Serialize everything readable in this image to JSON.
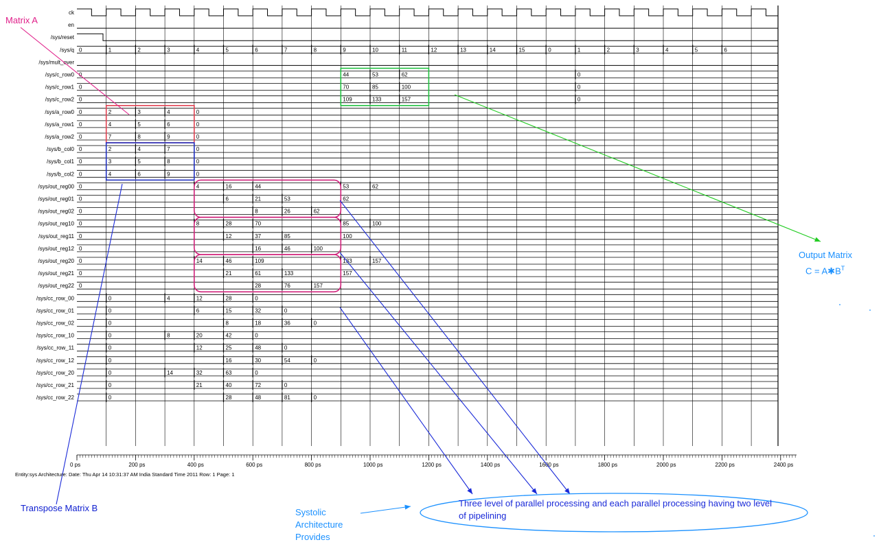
{
  "signals": [
    {
      "name": "ck",
      "kind": "clock"
    },
    {
      "name": "en",
      "kind": "bit",
      "changes": []
    },
    {
      "name": "/sys/reset",
      "kind": "reset"
    },
    {
      "name": "/sys/q",
      "kind": "bus",
      "init": "0",
      "values": [
        [
          "1",
          1
        ],
        [
          "2",
          2
        ],
        [
          "3",
          3
        ],
        [
          "4",
          4
        ],
        [
          "5",
          5
        ],
        [
          "6",
          6
        ],
        [
          "7",
          7
        ],
        [
          "8",
          8
        ],
        [
          "9",
          9
        ],
        [
          "10",
          10
        ],
        [
          "11",
          11
        ],
        [
          "12",
          12
        ],
        [
          "13",
          13
        ],
        [
          "14",
          14
        ],
        [
          "15",
          15
        ],
        [
          "0",
          16
        ],
        [
          "1",
          17
        ],
        [
          "2",
          18
        ],
        [
          "3",
          19
        ],
        [
          "4",
          20
        ],
        [
          "5",
          21
        ],
        [
          "6",
          22
        ]
      ]
    },
    {
      "name": "/sys/mult_over",
      "kind": "bit",
      "changes": []
    },
    {
      "name": "/sys/c_row0",
      "kind": "bus",
      "init": "0",
      "values": [
        [
          "44",
          9
        ],
        [
          "53",
          10
        ],
        [
          "62",
          11
        ],
        [
          "0",
          17
        ]
      ]
    },
    {
      "name": "/sys/c_row1",
      "kind": "bus",
      "init": "0",
      "values": [
        [
          "70",
          9
        ],
        [
          "85",
          10
        ],
        [
          "100",
          11
        ],
        [
          "0",
          17
        ]
      ]
    },
    {
      "name": "/sys/c_row2",
      "kind": "bus",
      "init": "0",
      "values": [
        [
          "109",
          9
        ],
        [
          "133",
          10
        ],
        [
          "157",
          11
        ],
        [
          "0",
          17
        ]
      ]
    },
    {
      "name": "/sys/a_row0",
      "kind": "bus",
      "init": "0",
      "values": [
        [
          "2",
          1
        ],
        [
          "3",
          2
        ],
        [
          "4",
          3
        ],
        [
          "0",
          4
        ]
      ]
    },
    {
      "name": "/sys/a_row1",
      "kind": "bus",
      "init": "0",
      "values": [
        [
          "4",
          1
        ],
        [
          "5",
          2
        ],
        [
          "6",
          3
        ],
        [
          "0",
          4
        ]
      ]
    },
    {
      "name": "/sys/a_row2",
      "kind": "bus",
      "init": "0",
      "values": [
        [
          "7",
          1
        ],
        [
          "8",
          2
        ],
        [
          "9",
          3
        ],
        [
          "0",
          4
        ]
      ]
    },
    {
      "name": "/sys/b_col0",
      "kind": "bus",
      "init": "0",
      "values": [
        [
          "2",
          1
        ],
        [
          "4",
          2
        ],
        [
          "7",
          3
        ],
        [
          "0",
          4
        ]
      ]
    },
    {
      "name": "/sys/b_col1",
      "kind": "bus",
      "init": "0",
      "values": [
        [
          "3",
          1
        ],
        [
          "5",
          2
        ],
        [
          "8",
          3
        ],
        [
          "0",
          4
        ]
      ]
    },
    {
      "name": "/sys/b_col2",
      "kind": "bus",
      "init": "0",
      "values": [
        [
          "4",
          1
        ],
        [
          "6",
          2
        ],
        [
          "9",
          3
        ],
        [
          "0",
          4
        ]
      ]
    },
    {
      "name": "/sys/out_reg00",
      "kind": "bus",
      "init": "0",
      "values": [
        [
          "4",
          4
        ],
        [
          "16",
          5
        ],
        [
          "44",
          6
        ],
        [
          "53",
          9
        ],
        [
          "62",
          10
        ]
      ]
    },
    {
      "name": "/sys/out_reg01",
      "kind": "bus",
      "init": "0",
      "values": [
        [
          "6",
          5
        ],
        [
          "21",
          6
        ],
        [
          "53",
          7
        ],
        [
          "62",
          9
        ]
      ]
    },
    {
      "name": "/sys/out_reg02",
      "kind": "bus",
      "init": "0",
      "values": [
        [
          "8",
          6
        ],
        [
          "26",
          7
        ],
        [
          "62",
          8
        ]
      ]
    },
    {
      "name": "/sys/out_reg10",
      "kind": "bus",
      "init": "0",
      "values": [
        [
          "8",
          4
        ],
        [
          "28",
          5
        ],
        [
          "70",
          6
        ],
        [
          "85",
          9
        ],
        [
          "100",
          10
        ]
      ]
    },
    {
      "name": "/sys/out_reg11",
      "kind": "bus",
      "init": "0",
      "values": [
        [
          "12",
          5
        ],
        [
          "37",
          6
        ],
        [
          "85",
          7
        ],
        [
          "100",
          9
        ]
      ]
    },
    {
      "name": "/sys/out_reg12",
      "kind": "bus",
      "init": "0",
      "values": [
        [
          "16",
          6
        ],
        [
          "46",
          7
        ],
        [
          "100",
          8
        ]
      ]
    },
    {
      "name": "/sys/out_reg20",
      "kind": "bus",
      "init": "0",
      "values": [
        [
          "14",
          4
        ],
        [
          "46",
          5
        ],
        [
          "109",
          6
        ],
        [
          "133",
          9
        ],
        [
          "157",
          10
        ]
      ]
    },
    {
      "name": "/sys/out_reg21",
      "kind": "bus",
      "init": "0",
      "values": [
        [
          "21",
          5
        ],
        [
          "61",
          6
        ],
        [
          "133",
          7
        ],
        [
          "157",
          9
        ]
      ]
    },
    {
      "name": "/sys/out_reg22",
      "kind": "bus",
      "init": "0",
      "values": [
        [
          "28",
          6
        ],
        [
          "76",
          7
        ],
        [
          "157",
          8
        ]
      ]
    },
    {
      "name": "/sys/cc_row_00",
      "kind": "bus",
      "init": "",
      "values": [
        [
          "0",
          1
        ],
        [
          "4",
          3
        ],
        [
          "12",
          4
        ],
        [
          "28",
          5
        ],
        [
          "0",
          6
        ]
      ]
    },
    {
      "name": "/sys/cc_row_01",
      "kind": "bus",
      "init": "",
      "values": [
        [
          "0",
          1
        ],
        [
          "6",
          4
        ],
        [
          "15",
          5
        ],
        [
          "32",
          6
        ],
        [
          "0",
          7
        ]
      ]
    },
    {
      "name": "/sys/cc_row_02",
      "kind": "bus",
      "init": "",
      "values": [
        [
          "0",
          1
        ],
        [
          "8",
          5
        ],
        [
          "18",
          6
        ],
        [
          "36",
          7
        ],
        [
          "0",
          8
        ]
      ]
    },
    {
      "name": "/sys/cc_row_10",
      "kind": "bus",
      "init": "",
      "values": [
        [
          "0",
          1
        ],
        [
          "8",
          3
        ],
        [
          "20",
          4
        ],
        [
          "42",
          5
        ],
        [
          "0",
          6
        ]
      ]
    },
    {
      "name": "/sys/cc_row_11",
      "kind": "bus",
      "init": "",
      "values": [
        [
          "0",
          1
        ],
        [
          "12",
          4
        ],
        [
          "25",
          5
        ],
        [
          "48",
          6
        ],
        [
          "0",
          7
        ]
      ]
    },
    {
      "name": "/sys/cc_row_12",
      "kind": "bus",
      "init": "",
      "values": [
        [
          "0",
          1
        ],
        [
          "16",
          5
        ],
        [
          "30",
          6
        ],
        [
          "54",
          7
        ],
        [
          "0",
          8
        ]
      ]
    },
    {
      "name": "/sys/cc_row_20",
      "kind": "bus",
      "init": "",
      "values": [
        [
          "0",
          1
        ],
        [
          "14",
          3
        ],
        [
          "32",
          4
        ],
        [
          "63",
          5
        ],
        [
          "0",
          6
        ]
      ]
    },
    {
      "name": "/sys/cc_row_21",
      "kind": "bus",
      "init": "",
      "values": [
        [
          "0",
          1
        ],
        [
          "21",
          4
        ],
        [
          "40",
          5
        ],
        [
          "72",
          6
        ],
        [
          "0",
          7
        ]
      ]
    },
    {
      "name": "/sys/cc_row_22",
      "kind": "bus",
      "init": "",
      "values": [
        [
          "0",
          1
        ],
        [
          "28",
          5
        ],
        [
          "48",
          6
        ],
        [
          "81",
          7
        ],
        [
          "0",
          8
        ]
      ]
    }
  ],
  "time_axis": {
    "labels": [
      "0 ps",
      "200 ps",
      "400 ps",
      "600 ps",
      "800 ps",
      "1000 ps",
      "1200 ps",
      "1400 ps",
      "1600 ps",
      "1800 ps",
      "2000 ps",
      "2200 ps",
      "2400 ps"
    ]
  },
  "footer": "Entity:sys  Architecture:  Date: Thu Apr 14 10:31:37 AM India Standard Time 2011   Row: 1 Page: 1",
  "annotations": {
    "matrix_a": "Matrix A",
    "transpose_b": "Transpose Matrix B",
    "output_matrix": "Output Matrix",
    "output_eq": "C = A",
    "output_eq_op": "✱",
    "output_eq_b": "B",
    "output_eq_sup": "T",
    "systolic": "Systolic Architecture Provides",
    "note": "Three level of parallel processing and each parallel processing having two level of pipelining"
  },
  "colors": {
    "wave": "#000000",
    "matrix_a": "#e04050",
    "matrix_b": "#2030c0",
    "output_box": "#20c040",
    "out_reg_box": "#d0207a",
    "pointer_blue": "#1a2ad8",
    "pointer_green": "#22cc22",
    "pointer_pink": "#e0208a",
    "ellipse": "#1a90ff"
  }
}
